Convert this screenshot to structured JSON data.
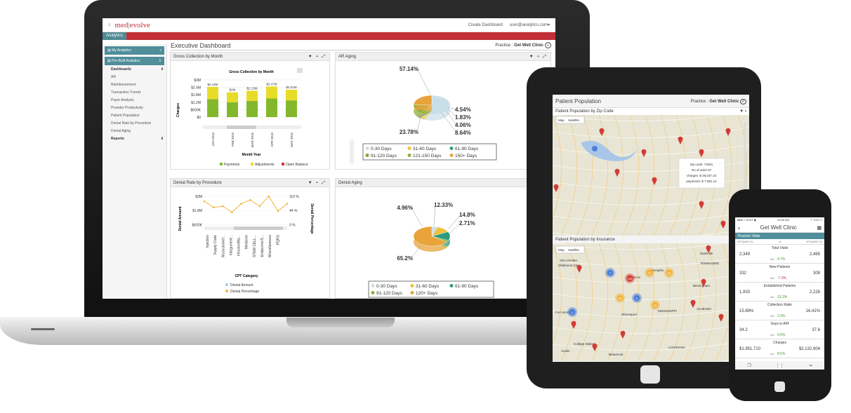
{
  "laptop": {
    "brand": {
      "part1": "med",
      "part2": "evolve"
    },
    "topbar": {
      "create": "Create Dashboard",
      "user": "user@analytics.com▾"
    },
    "tab": "Analytics",
    "sidebar": {
      "my": "My Analytics",
      "prebuilt": "Pre-Built Analytics",
      "collapse": "«",
      "toggle": "⇕",
      "dashboards": "Dashboards",
      "items": [
        "AR",
        "Reimbursement",
        "Transaction Trends",
        "Payor Analysis",
        "Provider Productivity",
        "Patient Population",
        "Denial Rate by Procedure",
        "Denial Aging"
      ],
      "reports": "Reports",
      "plus": "⇕"
    },
    "title": "Executive Dashboard",
    "practice_label": "Practice :",
    "practice_name": "Get Well Clinic",
    "panels": {
      "gross": "Gross Collection by Month",
      "ar": "AR Aging",
      "denial_rate": "Denial Rate by Procedure",
      "denial_aging": "Denial Aging"
    },
    "tools": "▼ ▪ ⤢",
    "gross_legend": [
      "Payments",
      "Adjustments",
      "Open Balance"
    ],
    "denial_legend": [
      "Denial Amount",
      "Denial Percentage"
    ],
    "ar_legend": [
      "0-30 Days",
      "31-60 Days",
      "61-90 Days",
      "91-120 Days",
      "121-150 Days",
      "150+ Days"
    ],
    "aging_legend": [
      "0-30 Days",
      "31-60 Days",
      "61-90 Days",
      "91-120 Days",
      "120+ Days"
    ]
  },
  "chart_data": [
    {
      "type": "bar",
      "title": "Gross Collection by Month",
      "xlabel": "Month Year",
      "ylabel": "Charges",
      "categories": [
        "JAN 2015",
        "FEB 2015",
        "MAR 2015",
        "APR 2015",
        "MAY 2015"
      ],
      "yticks": [
        "$3M",
        "$2.4M",
        "$1.8M",
        "$1.2M",
        "$600K",
        "$0"
      ],
      "data_labels": [
        "$2.44M",
        "$2M",
        "$2.13M",
        "$2.47M",
        "$2.21M"
      ],
      "series": [
        {
          "name": "Payments",
          "values": [
            1.45,
            1.2,
            1.3,
            1.5,
            1.35
          ]
        },
        {
          "name": "Adjustments",
          "values": [
            0.99,
            0.8,
            0.83,
            0.97,
            0.86
          ]
        }
      ],
      "ylim": [
        0,
        3
      ],
      "colors": [
        "#84b82c",
        "#e7dc27",
        "#d6342f"
      ]
    },
    {
      "type": "pie",
      "title": "AR Aging",
      "labels": [
        "57.14%",
        "4.54%",
        "1.83%",
        "4.06%",
        "8.64%",
        "23.78%"
      ],
      "values": [
        57.14,
        4.54,
        1.83,
        4.06,
        8.64,
        23.78
      ],
      "colors": [
        "#c9dfe8",
        "#eec23d",
        "#2f9b7c",
        "#9b9b2c",
        "#89b23a",
        "#e8a33a"
      ]
    },
    {
      "type": "line",
      "title": "Denial Rate by Procedure",
      "xlabel": "CPT Category",
      "ylabel": "Denial Amount",
      "y2label": "Denial Percentage",
      "categories": [
        "Injection",
        "Supply Code",
        "Musculoskel...",
        "Integument...",
        "Infusion/Ma...",
        "Medicine",
        "STEM CELL...",
        "Endocrine/S...",
        "Miscellaneous",
        "PQRS"
      ],
      "yticks": [
        "$3M",
        "$1.8M",
        "$600K"
      ],
      "y2ticks": [
        "110 %",
        "44 %",
        "0 %"
      ],
      "series": [
        {
          "name": "Denial Amount",
          "values": [
            80,
            55,
            60,
            35,
            70,
            85,
            60,
            100,
            40,
            70
          ]
        }
      ]
    },
    {
      "type": "pie",
      "title": "Denial Aging",
      "labels": [
        "4.96%",
        "12.33%",
        "14.8%",
        "2.71%",
        "65.2%"
      ],
      "values": [
        4.96,
        12.33,
        14.8,
        2.71,
        65.2
      ],
      "colors": [
        "#c9dfe8",
        "#eec23d",
        "#2f9b7c",
        "#89b23a",
        "#e8a33a"
      ]
    }
  ],
  "tablet": {
    "title": "Patient Population",
    "practice_label": "Practice :",
    "practice_name": "Get Well Clinic",
    "zip": "Patient Population by Zip Code",
    "ins": "Patient Population by Insurance",
    "map": "Map",
    "sat": "Satellite",
    "tooltip": [
      "Zip-code: 72081",
      "No of visits 97",
      "charges: $ 28,037.23",
      "payments: $ 7,591.12"
    ],
    "cities": {
      "ok": "OKLAHOMA",
      "okc": "Oklahoma City",
      "tn": "TENNESSEE",
      "ms": "MISSISSIPPI",
      "al": "ALABAMA",
      "fw": "Fort Worth",
      "nash": "Nashville",
      "mem": "Memphis",
      "shr": "Shreveport",
      "bham": "Birmingham",
      "la": "LOUISIANA",
      "ark": "ANSAS",
      "cs": "College Station",
      "bea": "Beaumont",
      "aus": "Austin"
    },
    "clusters": [
      "7",
      "105",
      "22",
      "25",
      "48",
      "6",
      "32",
      "4"
    ]
  },
  "phone": {
    "status_left": "●●●○○ AT&T ◆",
    "time": "10:36 AM",
    "status_right": "⇡ 72% ▭",
    "title": "Get Well Clinic",
    "section": "Practice Vitals",
    "col1": "MTD(MAR 14)",
    "vs": "vs",
    "col2": "MTD(MAR 15)",
    "var": "Var :",
    "rows": [
      {
        "label": "Total Visits",
        "a": "2,349",
        "b": "2,465",
        "v": "4.7%"
      },
      {
        "label": "New Patients",
        "a": "332",
        "b": "308",
        "v": "-7.3%"
      },
      {
        "label": "Established Patients",
        "a": "1,933",
        "b": "2,226",
        "v": "13.2%"
      },
      {
        "label": "Collection Ratio",
        "a": "15.89%",
        "b": "16.41%",
        "v": "3.3%"
      },
      {
        "label": "Days in A/R",
        "a": "34.2",
        "b": "37.6",
        "v": "9.0%"
      },
      {
        "label": "Charges",
        "a": "$1,951,710",
        "b": "$2,132,904",
        "v": "8.5%"
      }
    ]
  }
}
